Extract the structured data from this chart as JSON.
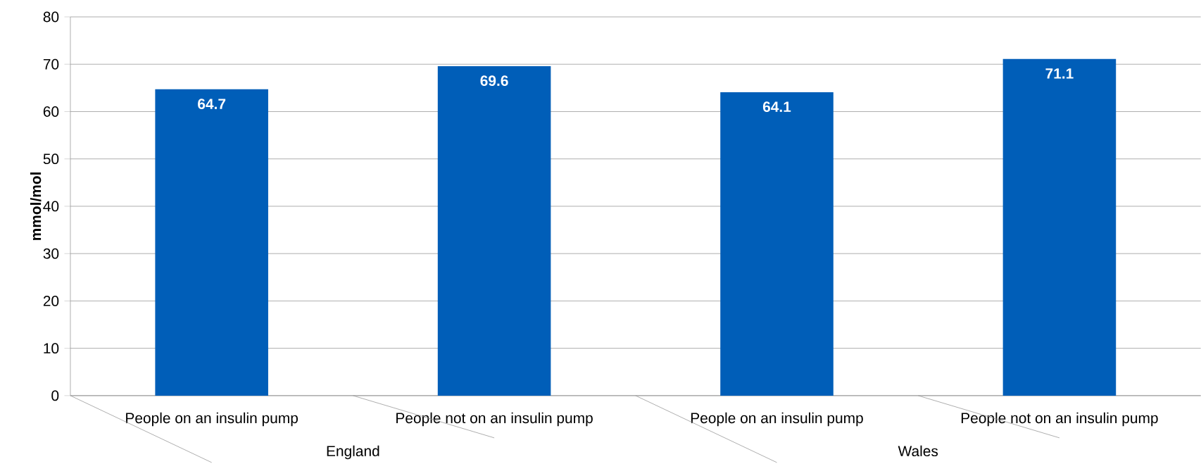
{
  "chart_data": {
    "type": "bar",
    "ylabel": "mmol/mol",
    "categories": [
      "People on an insulin pump",
      "People not on an insulin pump",
      "People on an insulin pump",
      "People not on an insulin pump"
    ],
    "values": [
      64.7,
      69.6,
      64.1,
      71.1
    ],
    "color": "#005eb8",
    "ylim": [
      0,
      80
    ],
    "yticks": [
      0,
      10,
      20,
      30,
      40,
      50,
      60,
      70,
      80
    ],
    "grid": "y",
    "data_labels": true,
    "annotations": [
      "England",
      "Wales"
    ]
  }
}
